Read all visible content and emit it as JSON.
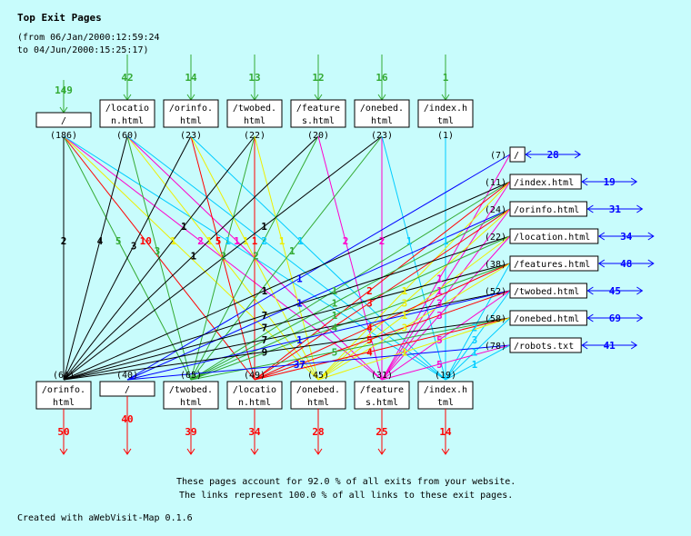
{
  "title": "Top Exit Pages",
  "period_from": "(from 06/Jan/2000:12:59:24",
  "period_to": "to 04/Jun/2000:15:25:17)",
  "top_nodes": [
    {
      "l1": "/",
      "l2": "",
      "count": "(186)",
      "entries": "149"
    },
    {
      "l1": "/locatio",
      "l2": "n.html",
      "count": "(60)",
      "entries": "42"
    },
    {
      "l1": "/orinfo.",
      "l2": "html",
      "count": "(23)",
      "entries": "14"
    },
    {
      "l1": "/twobed.",
      "l2": "html",
      "count": "(22)",
      "entries": "13"
    },
    {
      "l1": "/feature",
      "l2": "s.html",
      "count": "(20)",
      "entries": "12"
    },
    {
      "l1": "/onebed.",
      "l2": "html",
      "count": "(23)",
      "entries": "16"
    },
    {
      "l1": "/index.h",
      "l2": "tml",
      "count": "(1)",
      "entries": "1"
    }
  ],
  "bottom_nodes": [
    {
      "l1": "/orinfo.",
      "l2": "html",
      "count": "(64)",
      "exits": "50",
      "color": "#000000"
    },
    {
      "l1": "/",
      "l2": "",
      "count": "(40)",
      "exits": "40",
      "color": "#0000ff"
    },
    {
      "l1": "/twobed.",
      "l2": "html",
      "count": "(65)",
      "exits": "39",
      "color": "#33aa33"
    },
    {
      "l1": "/locatio",
      "l2": "n.html",
      "count": "(49)",
      "exits": "34",
      "color": "#ff0000"
    },
    {
      "l1": "/onebed.",
      "l2": "html",
      "count": "(45)",
      "exits": "28",
      "color": "#eeee00"
    },
    {
      "l1": "/feature",
      "l2": "s.html",
      "count": "(31)",
      "exits": "25",
      "color": "#ff00cc"
    },
    {
      "l1": "/index.h",
      "l2": "tml",
      "count": "(19)",
      "exits": "14",
      "color": "#00ccff"
    }
  ],
  "right_nodes": [
    {
      "label": "/",
      "count": "(7)",
      "value": "28"
    },
    {
      "label": "/index.html",
      "count": "(11)",
      "value": "19"
    },
    {
      "label": "/orinfo.html",
      "count": "(24)",
      "value": "31"
    },
    {
      "label": "/location.html",
      "count": "(22)",
      "value": "34"
    },
    {
      "label": "/features.html",
      "count": "(38)",
      "value": "48"
    },
    {
      "label": "/twobed.html",
      "count": "(52)",
      "value": "45"
    },
    {
      "label": "/onebed.html",
      "count": "(58)",
      "value": "69"
    },
    {
      "label": "/robots.txt",
      "count": "(78)",
      "value": "41"
    }
  ],
  "links": [
    [
      "t0",
      0,
      2
    ],
    [
      "t0",
      3,
      10
    ],
    [
      "t0",
      2,
      5
    ],
    [
      "t0",
      4,
      1
    ],
    [
      "t0",
      5,
      2
    ],
    [
      "t0",
      6,
      1
    ],
    [
      "t1",
      0,
      4
    ],
    [
      "t1",
      2,
      3
    ],
    [
      "t1",
      4,
      1
    ],
    [
      "t1",
      5,
      1
    ],
    [
      "t1",
      6,
      2
    ],
    [
      "t2",
      0,
      3
    ],
    [
      "t2",
      3,
      5
    ],
    [
      "t2",
      4,
      1
    ],
    [
      "t2",
      6,
      1
    ],
    [
      "t3",
      0,
      1
    ],
    [
      "t3",
      3,
      1
    ],
    [
      "t3",
      2,
      2
    ],
    [
      "t3",
      4,
      1
    ],
    [
      "t4",
      0,
      1
    ],
    [
      "t4",
      2,
      2
    ],
    [
      "t4",
      5,
      2
    ],
    [
      "t5",
      0,
      1
    ],
    [
      "t5",
      2,
      1
    ],
    [
      "t5",
      5,
      2
    ],
    [
      "t5",
      6,
      1
    ],
    [
      "t6",
      6,
      1
    ],
    [
      "r0",
      1,
      1
    ],
    [
      "r0",
      5,
      1
    ],
    [
      "r1",
      0,
      1
    ],
    [
      "r1",
      2,
      1
    ],
    [
      "r1",
      3,
      2
    ],
    [
      "r1",
      4,
      1
    ],
    [
      "r1",
      5,
      1
    ],
    [
      "r2",
      1,
      1
    ],
    [
      "r2",
      2,
      1
    ],
    [
      "r2",
      3,
      3
    ],
    [
      "r2",
      4,
      3
    ],
    [
      "r2",
      5,
      3
    ],
    [
      "r3",
      0,
      7
    ],
    [
      "r3",
      2,
      1
    ],
    [
      "r3",
      4,
      1
    ],
    [
      "r3",
      5,
      3
    ],
    [
      "r4",
      0,
      7
    ],
    [
      "r4",
      2,
      4
    ],
    [
      "r4",
      3,
      4
    ],
    [
      "r4",
      4,
      3
    ],
    [
      "r4",
      6,
      2
    ],
    [
      "r5",
      0,
      7
    ],
    [
      "r5",
      1,
      1
    ],
    [
      "r5",
      3,
      5
    ],
    [
      "r5",
      5,
      5
    ],
    [
      "r5",
      6,
      3
    ],
    [
      "r6",
      0,
      9
    ],
    [
      "r6",
      2,
      5
    ],
    [
      "r6",
      3,
      4
    ],
    [
      "r6",
      4,
      1
    ],
    [
      "r6",
      6,
      1
    ],
    [
      "r7",
      1,
      37
    ],
    [
      "r7",
      5,
      5
    ],
    [
      "r7",
      6,
      1
    ]
  ],
  "footer": {
    "line1": "These pages account for 92.0 % of all exits from your website.",
    "line2": "The links represent 100.0 % of all links to these exit pages.",
    "credit": "Created with aWebVisit-Map 0.1.6"
  },
  "colors": {
    "entry": "#33aa33",
    "exit": "#ff0000",
    "side": "#0000ff",
    "background": "#c8fcfc"
  }
}
